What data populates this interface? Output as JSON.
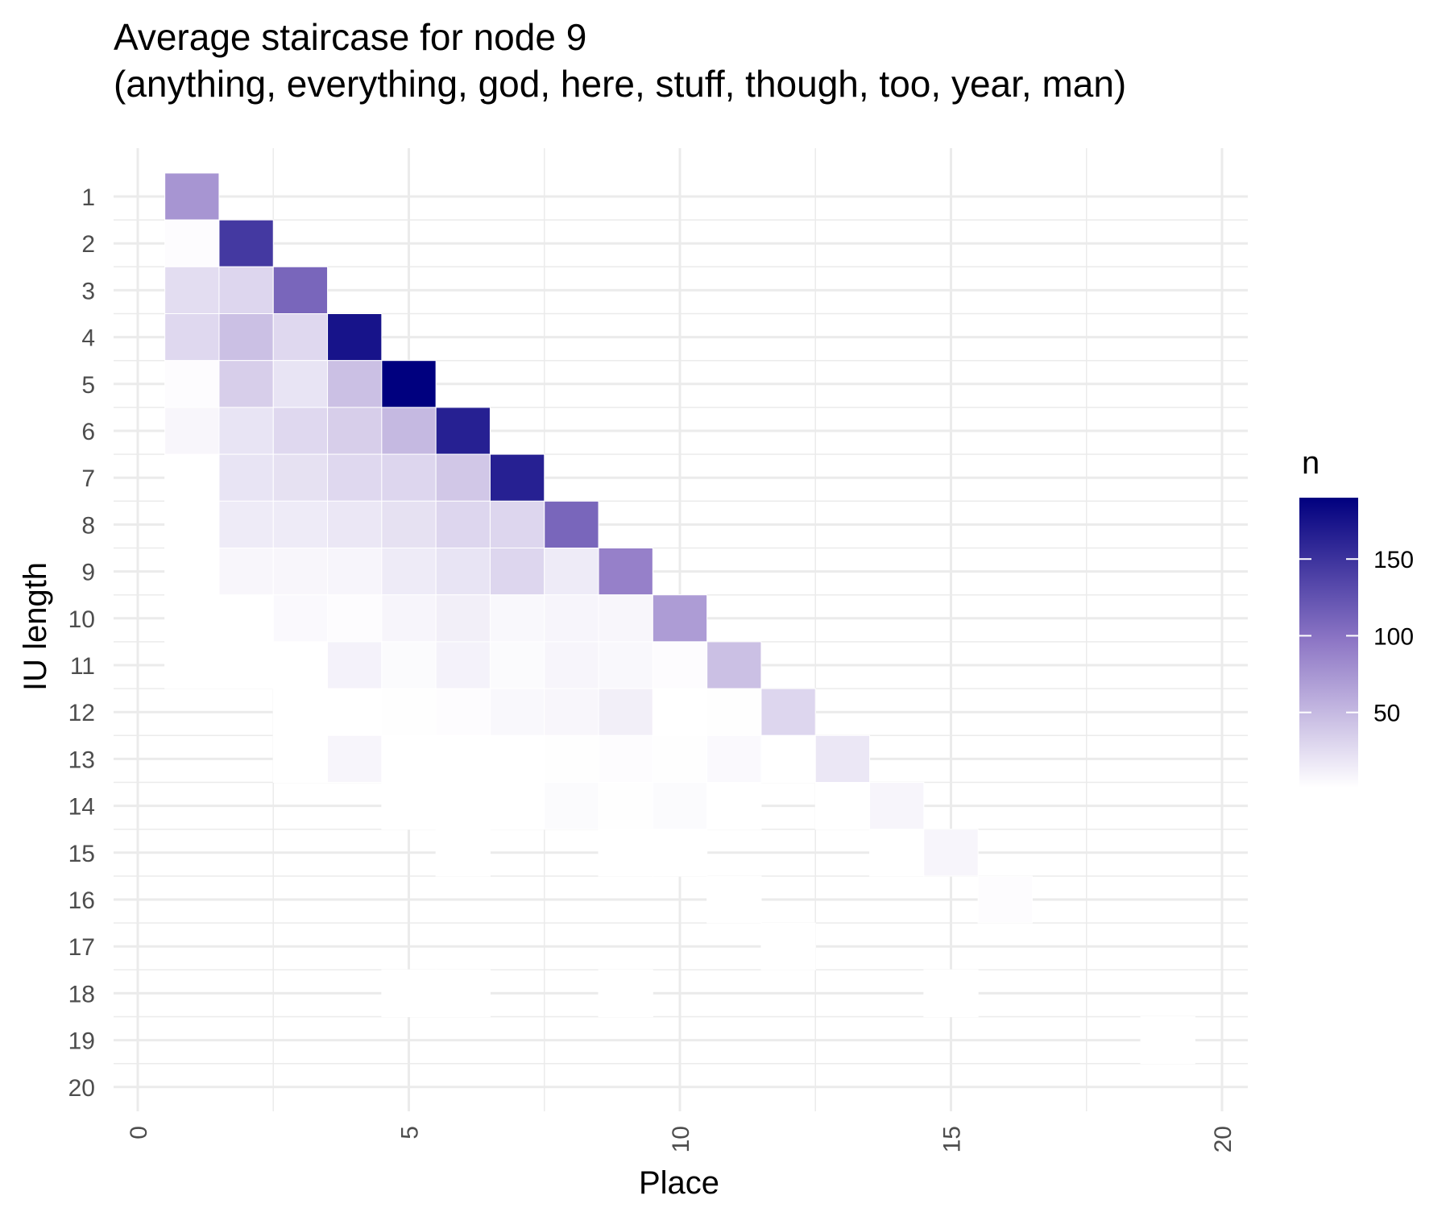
{
  "chart_data": {
    "type": "heatmap",
    "title": "Average staircase for node 9",
    "subtitle": "(anything, everything, god, here, stuff, though, too, year, man)",
    "xlabel": "Place",
    "ylabel": "IU length",
    "xlim": [
      0,
      20
    ],
    "ylim": [
      20,
      1
    ],
    "x_ticks": [
      "0",
      "5",
      "10",
      "15",
      "20"
    ],
    "y_ticks": [
      "1",
      "2",
      "3",
      "4",
      "5",
      "6",
      "7",
      "8",
      "9",
      "10",
      "11",
      "12",
      "13",
      "14",
      "15",
      "16",
      "17",
      "18",
      "19",
      "20"
    ],
    "grid": true,
    "legend": {
      "title": "n",
      "position": "right",
      "ticks": [
        "50",
        "100",
        "150"
      ],
      "tick_values": [
        50,
        100,
        150
      ],
      "range": [
        1,
        190
      ]
    },
    "colors": {
      "low": "#ffffff",
      "mid": "#8f78c6",
      "high": "#00007f"
    },
    "cells": [
      {
        "x": 1,
        "y": 1,
        "n": 75
      },
      {
        "x": 1,
        "y": 2,
        "n": 3
      },
      {
        "x": 2,
        "y": 2,
        "n": 145
      },
      {
        "x": 1,
        "y": 3,
        "n": 25
      },
      {
        "x": 2,
        "y": 3,
        "n": 30
      },
      {
        "x": 3,
        "y": 3,
        "n": 110
      },
      {
        "x": 1,
        "y": 4,
        "n": 28
      },
      {
        "x": 2,
        "y": 4,
        "n": 45
      },
      {
        "x": 3,
        "y": 4,
        "n": 28
      },
      {
        "x": 4,
        "y": 4,
        "n": 175
      },
      {
        "x": 1,
        "y": 5,
        "n": 3
      },
      {
        "x": 2,
        "y": 5,
        "n": 35
      },
      {
        "x": 3,
        "y": 5,
        "n": 20
      },
      {
        "x": 4,
        "y": 5,
        "n": 45
      },
      {
        "x": 5,
        "y": 5,
        "n": 190
      },
      {
        "x": 1,
        "y": 6,
        "n": 7
      },
      {
        "x": 2,
        "y": 6,
        "n": 20
      },
      {
        "x": 3,
        "y": 6,
        "n": 28
      },
      {
        "x": 4,
        "y": 6,
        "n": 35
      },
      {
        "x": 5,
        "y": 6,
        "n": 50
      },
      {
        "x": 6,
        "y": 6,
        "n": 165
      },
      {
        "x": 1,
        "y": 7,
        "n": 1
      },
      {
        "x": 2,
        "y": 7,
        "n": 20
      },
      {
        "x": 3,
        "y": 7,
        "n": 22
      },
      {
        "x": 4,
        "y": 7,
        "n": 28
      },
      {
        "x": 5,
        "y": 7,
        "n": 30
      },
      {
        "x": 6,
        "y": 7,
        "n": 40
      },
      {
        "x": 7,
        "y": 7,
        "n": 165
      },
      {
        "x": 1,
        "y": 8,
        "n": 1
      },
      {
        "x": 2,
        "y": 8,
        "n": 15
      },
      {
        "x": 3,
        "y": 8,
        "n": 15
      },
      {
        "x": 4,
        "y": 8,
        "n": 18
      },
      {
        "x": 5,
        "y": 8,
        "n": 22
      },
      {
        "x": 6,
        "y": 8,
        "n": 30
      },
      {
        "x": 7,
        "y": 8,
        "n": 30
      },
      {
        "x": 8,
        "y": 8,
        "n": 110
      },
      {
        "x": 1,
        "y": 9,
        "n": 1
      },
      {
        "x": 2,
        "y": 9,
        "n": 7
      },
      {
        "x": 3,
        "y": 9,
        "n": 7
      },
      {
        "x": 4,
        "y": 9,
        "n": 8
      },
      {
        "x": 5,
        "y": 9,
        "n": 15
      },
      {
        "x": 6,
        "y": 9,
        "n": 20
      },
      {
        "x": 7,
        "y": 9,
        "n": 30
      },
      {
        "x": 8,
        "y": 9,
        "n": 15
      },
      {
        "x": 9,
        "y": 9,
        "n": 90
      },
      {
        "x": 1,
        "y": 10,
        "n": 1
      },
      {
        "x": 2,
        "y": 10,
        "n": 1
      },
      {
        "x": 3,
        "y": 10,
        "n": 5
      },
      {
        "x": 4,
        "y": 10,
        "n": 3
      },
      {
        "x": 5,
        "y": 10,
        "n": 8
      },
      {
        "x": 6,
        "y": 10,
        "n": 12
      },
      {
        "x": 7,
        "y": 10,
        "n": 6
      },
      {
        "x": 8,
        "y": 10,
        "n": 8
      },
      {
        "x": 9,
        "y": 10,
        "n": 7
      },
      {
        "x": 10,
        "y": 10,
        "n": 70
      },
      {
        "x": 1,
        "y": 11,
        "n": 1
      },
      {
        "x": 2,
        "y": 11,
        "n": 1
      },
      {
        "x": 3,
        "y": 11,
        "n": 1
      },
      {
        "x": 4,
        "y": 11,
        "n": 10
      },
      {
        "x": 5,
        "y": 11,
        "n": 4
      },
      {
        "x": 6,
        "y": 11,
        "n": 10
      },
      {
        "x": 7,
        "y": 11,
        "n": 4
      },
      {
        "x": 8,
        "y": 11,
        "n": 8
      },
      {
        "x": 9,
        "y": 11,
        "n": 6
      },
      {
        "x": 10,
        "y": 11,
        "n": 3
      },
      {
        "x": 11,
        "y": 11,
        "n": 45
      },
      {
        "x": 3,
        "y": 12,
        "n": 1
      },
      {
        "x": 4,
        "y": 12,
        "n": 1
      },
      {
        "x": 5,
        "y": 12,
        "n": 2
      },
      {
        "x": 6,
        "y": 12,
        "n": 3
      },
      {
        "x": 7,
        "y": 12,
        "n": 6
      },
      {
        "x": 8,
        "y": 12,
        "n": 7
      },
      {
        "x": 9,
        "y": 12,
        "n": 12
      },
      {
        "x": 10,
        "y": 12,
        "n": 1
      },
      {
        "x": 11,
        "y": 12,
        "n": 2
      },
      {
        "x": 12,
        "y": 12,
        "n": 30
      },
      {
        "x": 3,
        "y": 13,
        "n": 1
      },
      {
        "x": 4,
        "y": 13,
        "n": 8
      },
      {
        "x": 5,
        "y": 13,
        "n": 1
      },
      {
        "x": 6,
        "y": 13,
        "n": 1
      },
      {
        "x": 7,
        "y": 13,
        "n": 1
      },
      {
        "x": 8,
        "y": 13,
        "n": 2
      },
      {
        "x": 9,
        "y": 13,
        "n": 3
      },
      {
        "x": 10,
        "y": 13,
        "n": 2
      },
      {
        "x": 11,
        "y": 13,
        "n": 5
      },
      {
        "x": 12,
        "y": 13,
        "n": 1
      },
      {
        "x": 13,
        "y": 13,
        "n": 18
      },
      {
        "x": 5,
        "y": 14,
        "n": 1
      },
      {
        "x": 6,
        "y": 14,
        "n": 1
      },
      {
        "x": 7,
        "y": 14,
        "n": 1
      },
      {
        "x": 8,
        "y": 14,
        "n": 4
      },
      {
        "x": 9,
        "y": 14,
        "n": 2
      },
      {
        "x": 10,
        "y": 14,
        "n": 4
      },
      {
        "x": 11,
        "y": 14,
        "n": 1
      },
      {
        "x": 13,
        "y": 14,
        "n": 1
      },
      {
        "x": 14,
        "y": 14,
        "n": 8
      },
      {
        "x": 6,
        "y": 15,
        "n": 1
      },
      {
        "x": 9,
        "y": 15,
        "n": 1
      },
      {
        "x": 10,
        "y": 15,
        "n": 1
      },
      {
        "x": 14,
        "y": 15,
        "n": 1
      },
      {
        "x": 15,
        "y": 15,
        "n": 8
      },
      {
        "x": 11,
        "y": 16,
        "n": 1
      },
      {
        "x": 16,
        "y": 16,
        "n": 3
      },
      {
        "x": 12,
        "y": 17,
        "n": 1
      },
      {
        "x": 5,
        "y": 18,
        "n": 1
      },
      {
        "x": 6,
        "y": 18,
        "n": 1
      },
      {
        "x": 9,
        "y": 18,
        "n": 1
      },
      {
        "x": 15,
        "y": 18,
        "n": 1
      },
      {
        "x": 19,
        "y": 19,
        "n": 1
      }
    ]
  }
}
